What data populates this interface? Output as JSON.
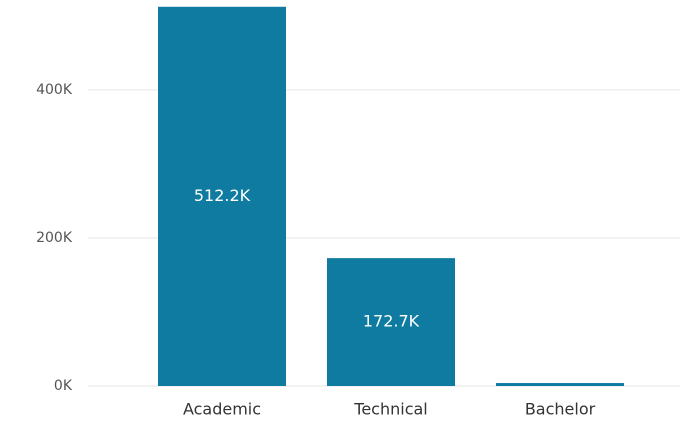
{
  "chart_data": {
    "type": "bar",
    "categories": [
      "Academic",
      "Technical",
      "Bachelor"
    ],
    "values": [
      512200,
      172700,
      4000
    ],
    "value_labels": [
      "512.2K",
      "172.7K",
      null
    ],
    "color": "#0f7ba0",
    "ylim": [
      0,
      520000
    ],
    "yticks": [
      {
        "value": 0,
        "label": "0K"
      },
      {
        "value": 200000,
        "label": "200K"
      },
      {
        "value": 400000,
        "label": "400K"
      }
    ],
    "grid": true
  }
}
